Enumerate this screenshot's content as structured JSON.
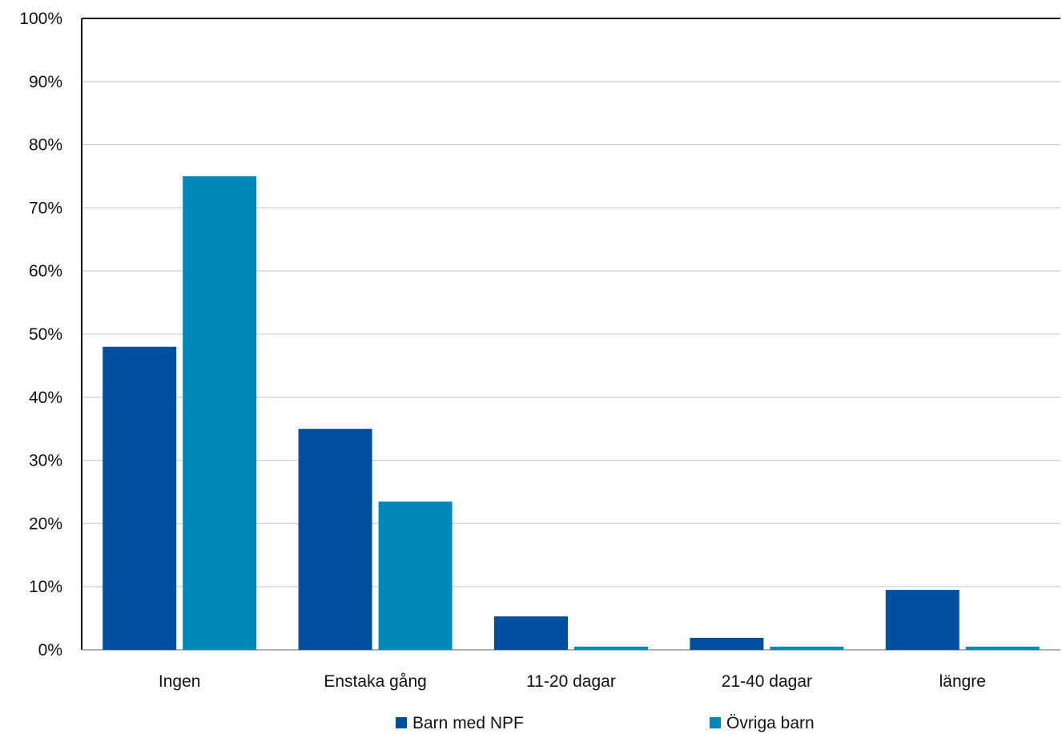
{
  "chart_data": {
    "type": "bar",
    "categories": [
      "Ingen",
      "Enstaka gång",
      "11-20 dagar",
      "21-40 dagar",
      "längre"
    ],
    "series": [
      {
        "name": "Barn med NPF",
        "color": "#024e9f",
        "values": [
          48,
          35,
          5.3,
          1.9,
          9.5
        ]
      },
      {
        "name": "Övriga barn",
        "color": "#0089b8",
        "values": [
          75,
          23.5,
          0.5,
          0.5,
          0.5
        ]
      }
    ],
    "ylim": [
      0,
      100
    ],
    "yticks": [
      "0%",
      "10%",
      "20%",
      "30%",
      "40%",
      "50%",
      "60%",
      "70%",
      "80%",
      "90%",
      "100%"
    ],
    "y_unit": "%",
    "grid": true,
    "legend_position": "bottom"
  }
}
